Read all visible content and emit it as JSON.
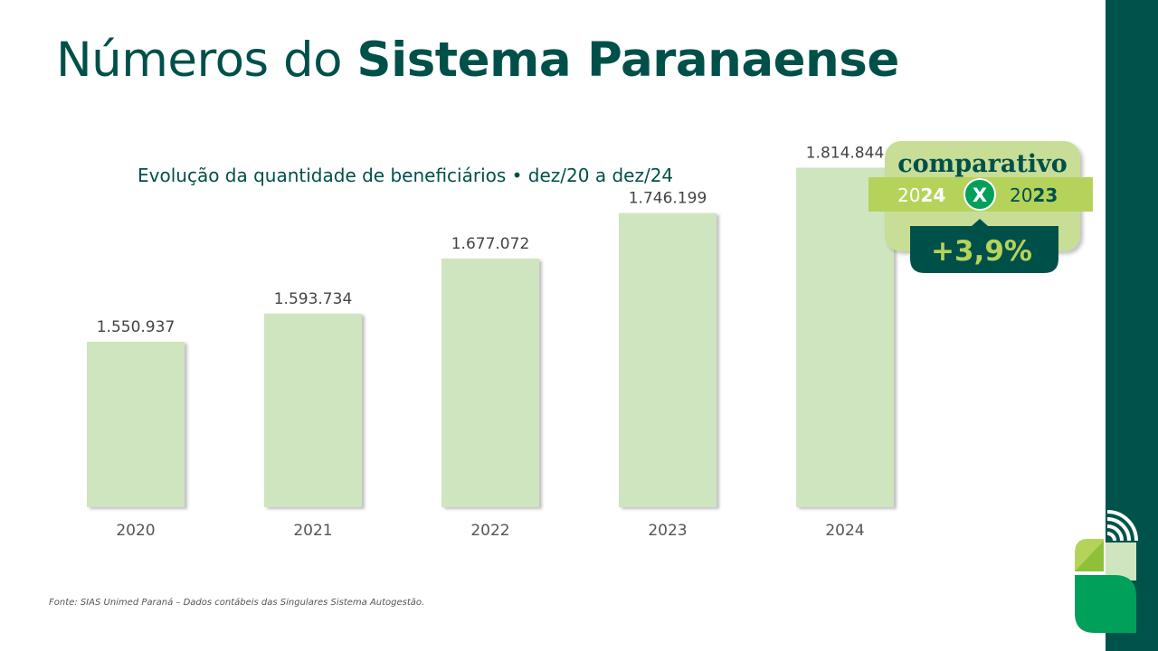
{
  "header": {
    "title_regular": "Números do",
    "title_bold": "Sistema Paranaense"
  },
  "badge": {
    "label": "comparativo",
    "year_a_prefix": "20",
    "year_a_suffix": "24",
    "vs": "X",
    "year_b_prefix": "20",
    "year_b_suffix": "23",
    "change": "+3,9%"
  },
  "footer": {
    "source": "Fonte: SIAS Unimed Paraná – Dados contábeis das Singulares Sistema Autogestão."
  },
  "colors": {
    "brand_dark": "#00504a",
    "bar_fill": "#cfe5c0",
    "badge_light": "#c8dd96",
    "badge_band": "#b5d35a",
    "accent_green": "#00a05a"
  },
  "chart_data": {
    "type": "bar",
    "title": "Evolução da quantidade de beneficiários • dez/20 a dez/24",
    "categories": [
      "2020",
      "2021",
      "2022",
      "2023",
      "2024"
    ],
    "values": [
      1550937,
      1593734,
      1677072,
      1746199,
      1814844
    ],
    "value_labels": [
      "1.550.937",
      "1.593.734",
      "1.677.072",
      "1.746.199",
      "1.814.844"
    ],
    "xlabel": "",
    "ylabel": "",
    "grid": false,
    "legend": "none"
  }
}
